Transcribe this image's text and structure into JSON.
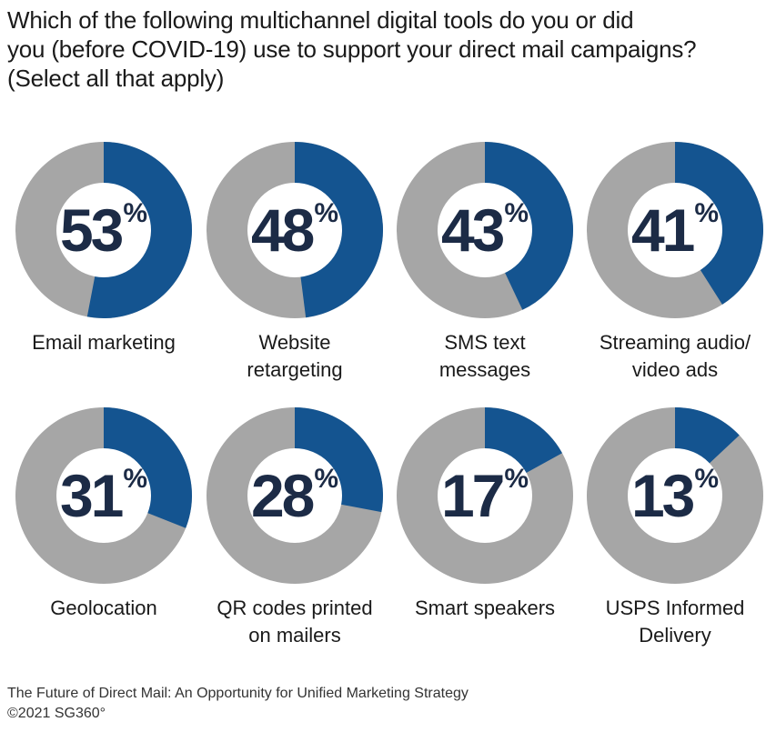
{
  "title_lines": [
    "Which of the following multichannel digital tools do you or did",
    "you (before COVID-19) use to support your direct mail campaigns?",
    "(Select all that apply)"
  ],
  "colors": {
    "filled": "#145490",
    "remainder": "#a6a6a6",
    "center": "#ffffff",
    "text": "#1c2b46"
  },
  "chart_data": {
    "type": "pie",
    "subtype": "donut",
    "title": "Which of the following multichannel digital tools do you or did you (before COVID-19) use to support your direct mail campaigns? (Select all that apply)",
    "unit": "%",
    "categories": [
      [
        "Email marketing"
      ],
      [
        "Website",
        "retargeting"
      ],
      [
        "SMS text",
        "messages"
      ],
      [
        "Streaming audio/",
        "video ads"
      ],
      [
        "Geolocation"
      ],
      [
        "QR codes printed",
        "on mailers"
      ],
      [
        "Smart speakers"
      ],
      [
        "USPS Informed",
        "Delivery"
      ]
    ],
    "values": [
      53,
      48,
      43,
      41,
      31,
      28,
      17,
      13
    ],
    "percent_symbol": "%"
  },
  "footer": {
    "source": "The Future of Direct Mail: An Opportunity for Unified Marketing Strategy",
    "copyright": "©2021 SG360°"
  }
}
